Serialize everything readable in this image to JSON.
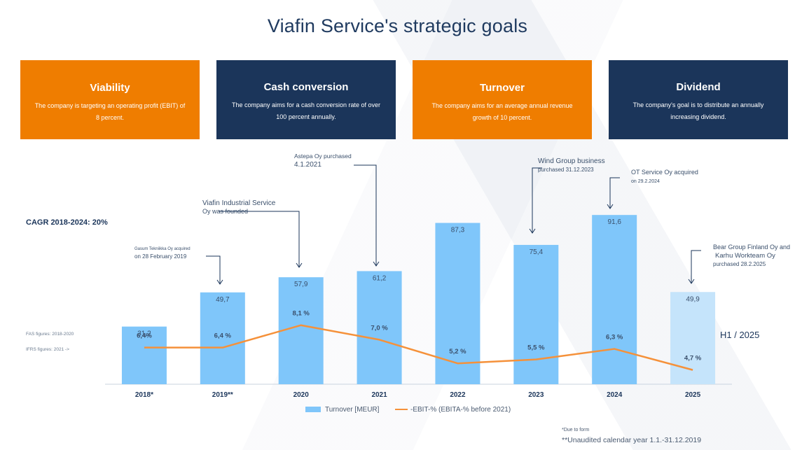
{
  "title": "Viafin Service's strategic goals",
  "cards": [
    {
      "title": "Viability",
      "text": "The company is targeting an operating profit (EBIT) of 8 percent.",
      "color": "#ef7d00"
    },
    {
      "title": "Cash conversion",
      "text": "The company aims for a cash conversion rate of over 100 percent annually.",
      "color": "#1b355a"
    },
    {
      "title": "Turnover",
      "text": "The company aims for an average annual revenue growth of 10 percent.",
      "color": "#ef7d00"
    },
    {
      "title": "Dividend",
      "text": "The company's goal is to distribute an annually increasing dividend.",
      "color": "#1b355a"
    }
  ],
  "cagr": "CAGR 2018-2024: 20%",
  "notes": {
    "fas": "FAS figures: 2018-2020",
    "ifrs": "IFRS figures: 2021 ->",
    "h1": "H1 / 2025",
    "footnote1": "*Due to form",
    "footnote2": "**Unaudited calendar year 1.1.-31.12.2019"
  },
  "annotations": [
    {
      "lines": [
        "Gasum Tekniikka Oy acquired",
        "on 28 February 2019"
      ],
      "year": "2019**"
    },
    {
      "lines": [
        "Viafin Industrial Service",
        "Oy was founded"
      ],
      "year": "2020"
    },
    {
      "lines": [
        "Astepa Oy purchased",
        "4.1.2021"
      ],
      "year": "2021"
    },
    {
      "lines": [
        "Wind Group business",
        "purchased 31.12.2023"
      ],
      "year": "2023"
    },
    {
      "lines": [
        "OT Service Oy acquired",
        "on 29.2.2024"
      ],
      "year": "2024"
    },
    {
      "lines": [
        "Bear Group Finland Oy and",
        "Karhu Workteam Oy",
        "purchased 28.2.2025"
      ],
      "year": "2025"
    }
  ],
  "legend": {
    "bar": "Turnover [MEUR]",
    "line": "-EBIT-% (EBITA-% before 2021)"
  },
  "chart_data": {
    "type": "bar",
    "categories": [
      "2018*",
      "2019**",
      "2020",
      "2021",
      "2022",
      "2023",
      "2024",
      "2025"
    ],
    "series": [
      {
        "name": "Turnover [MEUR]",
        "type": "bar",
        "values": [
          31.2,
          49.7,
          57.9,
          61.2,
          87.3,
          75.4,
          91.6,
          49.9
        ],
        "labels": [
          "31,2",
          "49,7",
          "57,9",
          "61,2",
          "87,3",
          "75,4",
          "91,6",
          "49,9"
        ],
        "color": "#7fc6fa",
        "highlight_last_color": "#c5e4fb"
      },
      {
        "name": "-EBIT-% (EBITA-% before 2021)",
        "type": "line",
        "values": [
          6.4,
          6.4,
          8.1,
          7.0,
          5.2,
          5.5,
          6.3,
          4.7
        ],
        "labels": [
          "6,4%",
          "6,4 %",
          "8,1 %",
          "7,0 %",
          "5,2 %",
          "5,5 %",
          "6,3 %",
          "4,7 %"
        ],
        "color": "#f5913a"
      }
    ],
    "legend_position": "bottom",
    "grid": false
  }
}
